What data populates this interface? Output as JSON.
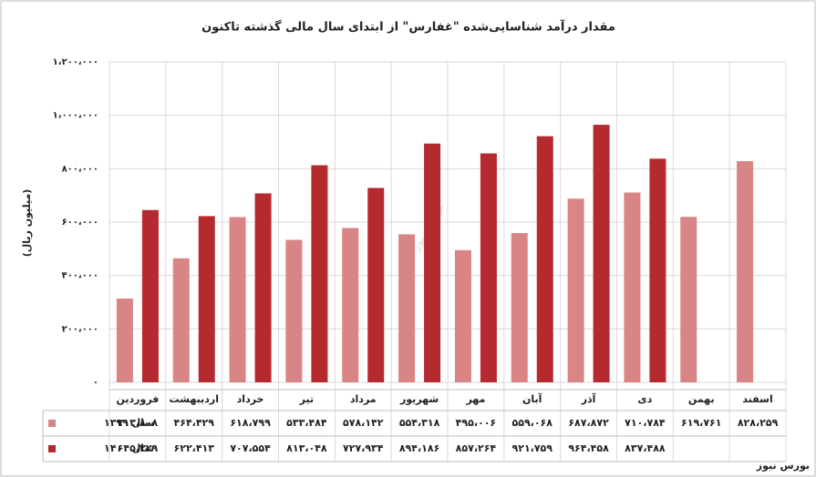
{
  "chart_data": {
    "type": "bar",
    "title": "مقدار درآمد شناسایی‌شده \"غفارس\" از ابتدای سال مالی گذشته تاکنون",
    "y_label": "(میلیون ریال)",
    "watermark": "بورس نیوز",
    "source": "بورس نیوز",
    "categories": [
      "فروردین",
      "اردیبهشت",
      "خرداد",
      "تیر",
      "مرداد",
      "شهریور",
      "مهر",
      "آبان",
      "آذر",
      "دی",
      "بهمن",
      "اسفند"
    ],
    "series": [
      {
        "name": "سال ۱۳۹۹",
        "color": "#d98585",
        "values": [
          313808,
          464429,
          618799,
          533484,
          578142,
          554318,
          495006,
          559068,
          687872,
          710784,
          619761,
          828259
        ],
        "value_labels": [
          "۳۱۳،۸۰۸",
          "۴۶۴،۴۲۹",
          "۶۱۸،۷۹۹",
          "۵۳۳،۴۸۴",
          "۵۷۸،۱۴۲",
          "۵۵۴،۳۱۸",
          "۴۹۵،۰۰۶",
          "۵۵۹،۰۶۸",
          "۶۸۷،۸۷۲",
          "۷۱۰،۷۸۴",
          "۶۱۹،۷۶۱",
          "۸۲۸،۲۵۹"
        ]
      },
      {
        "name": "سال ۱۴۰۰",
        "color": "#b52a2e",
        "values": [
          645229,
          622413,
          707554,
          813048,
          727934,
          894186,
          857264,
          921759,
          964458,
          837488,
          null,
          null
        ],
        "value_labels": [
          "۶۴۵،۲۲۹",
          "۶۲۲،۴۱۳",
          "۷۰۷،۵۵۴",
          "۸۱۳،۰۴۸",
          "۷۲۷،۹۳۴",
          "۸۹۴،۱۸۶",
          "۸۵۷،۲۶۴",
          "۹۲۱،۷۵۹",
          "۹۶۴،۴۵۸",
          "۸۳۷،۴۸۸",
          null,
          null
        ]
      }
    ],
    "ylim": [
      0,
      1200000
    ],
    "yticks": [
      {
        "value": 0,
        "label": "٠"
      },
      {
        "value": 200000,
        "label": "۲۰۰،۰۰۰"
      },
      {
        "value": 400000,
        "label": "۴۰۰،۰۰۰"
      },
      {
        "value": 600000,
        "label": "۶۰۰،۰۰۰"
      },
      {
        "value": 800000,
        "label": "۸۰۰،۰۰۰"
      },
      {
        "value": 1000000,
        "label": "۱،۰۰۰،۰۰۰"
      },
      {
        "value": 1200000,
        "label": "۱،۲۰۰،۰۰۰"
      }
    ],
    "grid": true
  }
}
